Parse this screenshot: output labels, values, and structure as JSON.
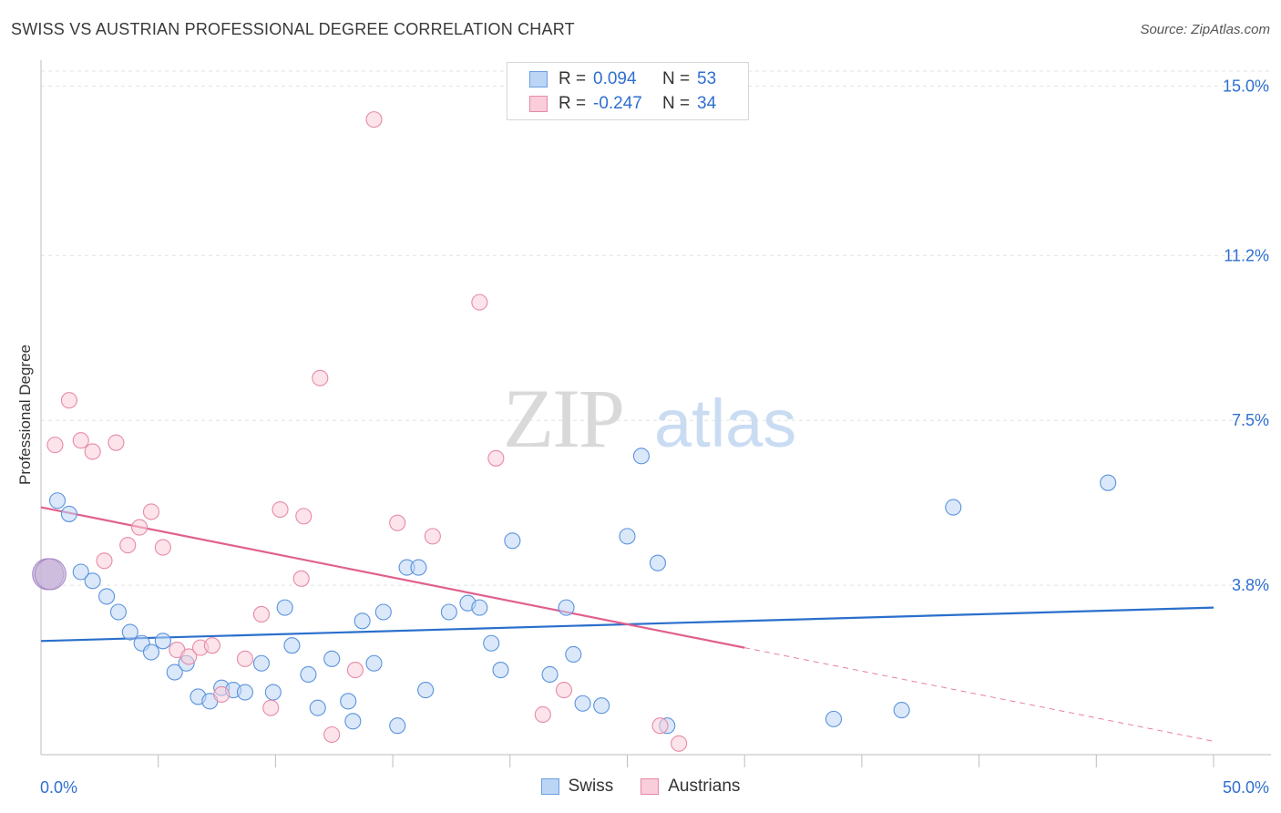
{
  "title": "SWISS VS AUSTRIAN PROFESSIONAL DEGREE CORRELATION CHART",
  "source": "Source: ZipAtlas.com",
  "watermark": {
    "zip": "ZIP",
    "atlas": "atlas"
  },
  "legend_top": [
    {
      "r_label": "R =",
      "r_value": "0.094",
      "n_label": "N =",
      "n_value": "53",
      "color": "#6a9fe0",
      "fill": "#bcd5f5"
    },
    {
      "r_label": "R =",
      "r_value": "-0.247",
      "n_label": "N =",
      "n_value": "34",
      "color": "#e78aa7",
      "fill": "#f9cdd9"
    }
  ],
  "bottom_legend": [
    {
      "label": "Swiss",
      "color": "#6a9fe0",
      "fill": "#bcd5f5"
    },
    {
      "label": "Austrians",
      "color": "#e78aa7",
      "fill": "#f9cdd9"
    }
  ],
  "chart_data": {
    "type": "scatter",
    "ylabel": "Professional Degree",
    "x_tick_labels": [
      "0.0%",
      "50.0%"
    ],
    "y_tick_labels": [
      "15.0%",
      "11.2%",
      "7.5%",
      "3.8%"
    ],
    "xlim": [
      0,
      50
    ],
    "ylim": [
      0,
      15.5
    ],
    "y_ticks": [
      15.0,
      11.2,
      7.5,
      3.8
    ],
    "grid": true,
    "series": [
      {
        "name": "Swiss",
        "color": "#5b93dc",
        "fill": "#bcd5f5",
        "trend": {
          "x": [
            0,
            50
          ],
          "y": [
            2.55,
            3.3
          ],
          "color": "#2a6fcc"
        },
        "points": [
          [
            0.7,
            5.7
          ],
          [
            1.2,
            5.4
          ],
          [
            1.7,
            4.1
          ],
          [
            2.2,
            3.9
          ],
          [
            2.8,
            3.55
          ],
          [
            3.3,
            3.2
          ],
          [
            3.8,
            2.75
          ],
          [
            4.3,
            2.5
          ],
          [
            4.7,
            2.3
          ],
          [
            5.2,
            2.55
          ],
          [
            5.7,
            1.85
          ],
          [
            6.2,
            2.05
          ],
          [
            6.7,
            1.3
          ],
          [
            7.2,
            1.2
          ],
          [
            7.7,
            1.5
          ],
          [
            8.2,
            1.45
          ],
          [
            8.7,
            1.4
          ],
          [
            9.4,
            2.05
          ],
          [
            9.9,
            1.4
          ],
          [
            10.4,
            3.3
          ],
          [
            10.7,
            2.45
          ],
          [
            11.4,
            1.8
          ],
          [
            11.8,
            1.05
          ],
          [
            12.4,
            2.15
          ],
          [
            13.1,
            1.2
          ],
          [
            13.7,
            3.0
          ],
          [
            13.3,
            0.75
          ],
          [
            14.2,
            2.05
          ],
          [
            14.6,
            3.2
          ],
          [
            15.2,
            0.65
          ],
          [
            15.6,
            4.2
          ],
          [
            16.1,
            4.2
          ],
          [
            16.4,
            1.45
          ],
          [
            17.4,
            3.2
          ],
          [
            18.2,
            3.4
          ],
          [
            18.7,
            3.3
          ],
          [
            19.2,
            2.5
          ],
          [
            19.6,
            1.9
          ],
          [
            20.1,
            4.8
          ],
          [
            21.7,
            1.8
          ],
          [
            22.4,
            3.3
          ],
          [
            22.7,
            2.25
          ],
          [
            23.1,
            1.15
          ],
          [
            23.9,
            1.1
          ],
          [
            25.0,
            4.9
          ],
          [
            25.6,
            6.7
          ],
          [
            26.3,
            4.3
          ],
          [
            26.7,
            0.65
          ],
          [
            33.8,
            0.8
          ],
          [
            36.7,
            1.0
          ],
          [
            38.9,
            5.55
          ],
          [
            45.5,
            6.1
          ],
          [
            0.3,
            4.05
          ]
        ]
      },
      {
        "name": "Austrians",
        "color": "#e78aa7",
        "fill": "#f9cdd9",
        "trend": {
          "x": [
            0,
            30
          ],
          "y": [
            5.55,
            2.4
          ],
          "color": "#e0608e"
        },
        "trend_dashed": {
          "x": [
            30,
            50
          ],
          "y": [
            2.4,
            0.3
          ]
        },
        "points": [
          [
            0.6,
            6.95
          ],
          [
            1.2,
            7.95
          ],
          [
            1.7,
            7.05
          ],
          [
            2.2,
            6.8
          ],
          [
            2.7,
            4.35
          ],
          [
            3.2,
            7.0
          ],
          [
            3.7,
            4.7
          ],
          [
            4.2,
            5.1
          ],
          [
            4.7,
            5.45
          ],
          [
            5.2,
            4.65
          ],
          [
            5.8,
            2.35
          ],
          [
            6.3,
            2.2
          ],
          [
            6.8,
            2.4
          ],
          [
            7.3,
            2.45
          ],
          [
            7.7,
            1.35
          ],
          [
            8.7,
            2.15
          ],
          [
            9.4,
            3.15
          ],
          [
            9.8,
            1.05
          ],
          [
            10.2,
            5.5
          ],
          [
            11.2,
            5.35
          ],
          [
            11.1,
            3.95
          ],
          [
            11.9,
            8.45
          ],
          [
            12.4,
            0.45
          ],
          [
            13.4,
            1.9
          ],
          [
            14.2,
            14.25
          ],
          [
            15.2,
            5.2
          ],
          [
            16.7,
            4.9
          ],
          [
            18.7,
            10.15
          ],
          [
            19.4,
            6.65
          ],
          [
            21.4,
            0.9
          ],
          [
            22.3,
            1.45
          ],
          [
            26.4,
            0.65
          ],
          [
            27.2,
            0.25
          ],
          [
            0.4,
            4.05
          ]
        ]
      }
    ]
  }
}
